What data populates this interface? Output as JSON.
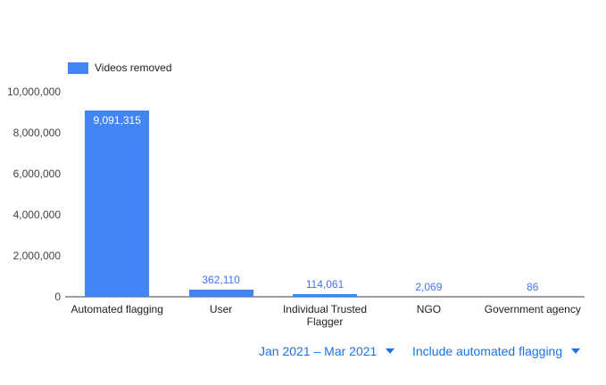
{
  "chart_data": {
    "type": "bar",
    "title": "",
    "series_name": "Videos removed",
    "legend_position": "top-left",
    "grid": false,
    "categories": [
      "Automated flagging",
      "User",
      "Individual Trusted Flagger",
      "NGO",
      "Government agency"
    ],
    "values": [
      9091315,
      362110,
      114061,
      2069,
      86
    ],
    "value_labels": [
      "9,091,315",
      "362,110",
      "114,061",
      "2,069",
      "86"
    ],
    "xlabel": "",
    "ylabel": "",
    "ylim": [
      0,
      10000000
    ],
    "yticks": [
      {
        "value": 0,
        "label": "0"
      },
      {
        "value": 2000000,
        "label": "2,000,000"
      },
      {
        "value": 4000000,
        "label": "4,000,000"
      },
      {
        "value": 6000000,
        "label": "6,000,000"
      },
      {
        "value": 8000000,
        "label": "8,000,000"
      },
      {
        "value": 10000000,
        "label": "10,000,000"
      }
    ]
  },
  "controls": {
    "date_range_label": "Jan 2021 – Mar 2021",
    "flagging_filter_label": "Include automated flagging",
    "dropdown_icon": "chevron-down"
  },
  "colors": {
    "bar": "#4285f4",
    "value_label": "#4274f5",
    "inside_value_label": "#ffffff",
    "control_text": "#1a73e8",
    "axis_line": "#9e9e9e",
    "tick_label": "#424242",
    "category_label": "#1f1f1f",
    "background": "#ffffff"
  }
}
